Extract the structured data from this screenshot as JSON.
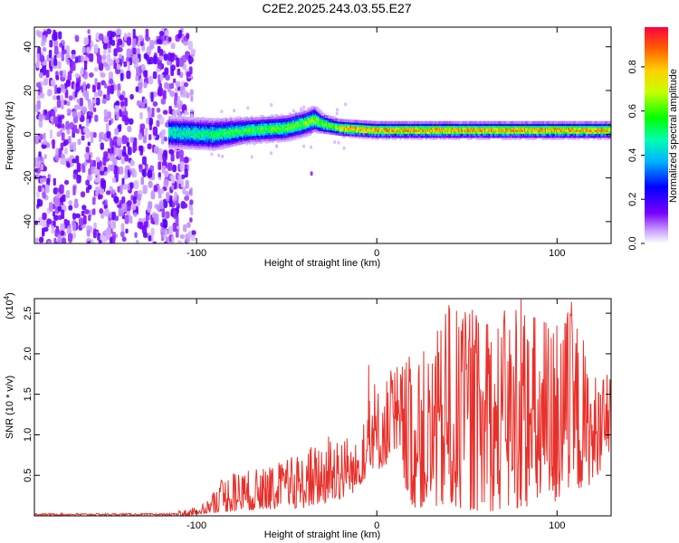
{
  "title": "C2E2.2025.243.03.55.E27",
  "chart_data": [
    {
      "type": "heatmap",
      "name": "spectrogram",
      "xlabel": "Height of straight line (km)",
      "ylabel": "Frequency (Hz)",
      "xlim": [
        -190,
        130
      ],
      "ylim": [
        -50,
        49
      ],
      "xticks": [
        -100,
        0,
        100
      ],
      "xtick_labels": [
        "-100",
        "0",
        "100"
      ],
      "yticks": [
        -40,
        -20,
        0,
        20,
        40
      ],
      "ytick_labels": [
        "-40",
        "-20",
        "0",
        "20",
        "40"
      ],
      "noise_region_x": [
        -190,
        -108
      ],
      "signal_band": {
        "x": [
          -115,
          -90,
          -70,
          -50,
          -40,
          -34,
          -30,
          -20,
          0,
          20,
          50,
          80,
          100,
          130
        ],
        "center_hz": [
          1,
          0,
          2,
          3,
          5,
          7,
          5,
          3,
          2,
          2,
          2,
          2,
          2,
          2
        ],
        "halfwidth_hz": [
          5,
          5,
          4,
          4,
          4,
          4,
          3,
          2.5,
          2.5,
          2.5,
          2.5,
          2.5,
          2.5,
          2.5
        ]
      },
      "peak_amplitude": 0.9
    },
    {
      "type": "colorbar",
      "name": "amplitude-colorbar",
      "label": "Normalized spectral amplitude",
      "range": [
        0,
        0.98
      ],
      "ticks": [
        0.0,
        0.2,
        0.4,
        0.6,
        0.8
      ],
      "tick_labels": [
        "0.0",
        "0.2",
        "0.4",
        "0.6",
        "0.8"
      ]
    },
    {
      "type": "line",
      "name": "snr-line",
      "xlabel": "Height of straight line (km)",
      "ylabel": "SNR (10 * v/v)",
      "y_exponent_label": "(x10",
      "y_exponent_power": "4",
      "y_exponent_close": ")",
      "xlim": [
        -190,
        130
      ],
      "ylim": [
        0,
        2.68
      ],
      "xticks": [
        -100,
        0,
        100
      ],
      "xtick_labels": [
        "-100",
        "0",
        "100"
      ],
      "yticks": [
        0.5,
        1.0,
        1.5,
        2.0,
        2.5
      ],
      "ytick_labels": [
        "0.5",
        "1.0",
        "1.5",
        "2.0",
        "2.5"
      ],
      "color": "#e8302a",
      "envelope": {
        "x": [
          -190,
          -120,
          -105,
          -95,
          -85,
          -80,
          -60,
          -40,
          -30,
          -20,
          -12,
          -5,
          -3,
          0,
          10,
          20,
          30,
          40,
          60,
          80,
          100,
          110,
          120,
          130
        ],
        "max": [
          0.03,
          0.04,
          0.08,
          0.18,
          0.5,
          0.55,
          0.6,
          0.8,
          1.0,
          1.1,
          0.9,
          1.3,
          1.9,
          1.6,
          1.9,
          2.0,
          2.1,
          2.6,
          2.5,
          2.6,
          2.5,
          2.6,
          1.8,
          1.75
        ],
        "min": [
          0.0,
          0.0,
          0.0,
          0.03,
          0.05,
          0.05,
          0.08,
          0.1,
          0.15,
          0.2,
          0.3,
          0.5,
          0.6,
          0.55,
          0.7,
          0.1,
          0.1,
          0.1,
          0.05,
          0.1,
          0.15,
          0.3,
          0.4,
          0.8
        ]
      },
      "peaks": [
        {
          "x": -4.5,
          "y": 1.86
        },
        {
          "x": 40,
          "y": 2.6
        },
        {
          "x": 53,
          "y": 2.54
        },
        {
          "x": 80,
          "y": 2.67
        },
        {
          "x": 108,
          "y": 2.64
        }
      ]
    }
  ]
}
